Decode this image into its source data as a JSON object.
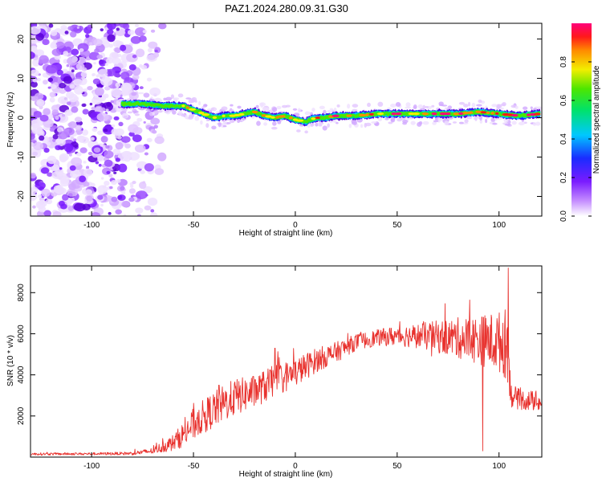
{
  "title": "PAZ1.2024.280.09.31.G30",
  "chart_data": [
    {
      "type": "heatmap",
      "title": "",
      "xlabel": "Height of straight line (km)",
      "ylabel": "Frequency (Hz)",
      "xlim": [
        -130,
        121
      ],
      "ylim": [
        -25,
        24
      ],
      "xticks": [
        -100,
        -50,
        0,
        50,
        100
      ],
      "yticks": [
        -20,
        -10,
        0,
        10,
        20
      ],
      "colorbar": {
        "label": "Normalized spectral amplitude",
        "range": [
          0,
          1
        ],
        "ticks": [
          "0.0",
          "0.2",
          "0.4",
          "0.6",
          "0.8"
        ],
        "colormap": "rainbow (white-violet-blue-cyan-green-yellow-red-magenta)"
      },
      "ridge": {
        "x": [
          -85,
          -75,
          -65,
          -55,
          -50,
          -45,
          -40,
          -35,
          -30,
          -25,
          -20,
          -15,
          -10,
          -5,
          0,
          5,
          10,
          15,
          20,
          30,
          40,
          50,
          60,
          70,
          80,
          90,
          100,
          110,
          120
        ],
        "freq": [
          3.5,
          3.5,
          3.0,
          3.0,
          2.0,
          1.0,
          0.0,
          0.5,
          0.5,
          1.0,
          1.5,
          0.5,
          0.0,
          0.5,
          -0.5,
          -1.0,
          0.0,
          0.0,
          0.5,
          0.5,
          1.0,
          1.0,
          1.0,
          1.0,
          1.0,
          1.5,
          1.0,
          0.5,
          1.0
        ]
      },
      "noise_region_x": [
        -130,
        -65
      ]
    },
    {
      "type": "line",
      "title": "",
      "xlabel": "Height of straight line (km)",
      "ylabel": "SNR (10 * v/v)",
      "xlim": [
        -130,
        121
      ],
      "ylim": [
        0,
        9300
      ],
      "xticks": [
        -100,
        -50,
        0,
        50,
        100
      ],
      "yticks": [
        2000,
        4000,
        6000,
        8000
      ],
      "color": "#e8322e",
      "envelope": {
        "x": [
          -130,
          -100,
          -80,
          -70,
          -60,
          -55,
          -50,
          -45,
          -40,
          -35,
          -30,
          -20,
          -10,
          0,
          10,
          20,
          30,
          40,
          50,
          60,
          70,
          80,
          90,
          100,
          104,
          106,
          110,
          120
        ],
        "mean": [
          150,
          160,
          180,
          300,
          700,
          1100,
          1600,
          2000,
          2300,
          2600,
          2900,
          3200,
          3700,
          4100,
          4700,
          5100,
          5600,
          5800,
          5900,
          5900,
          5850,
          5800,
          5700,
          5600,
          5500,
          3000,
          2800,
          2700
        ],
        "spread": [
          60,
          60,
          80,
          150,
          400,
          600,
          800,
          800,
          900,
          900,
          900,
          800,
          800,
          700,
          600,
          500,
          400,
          400,
          500,
          600,
          800,
          1000,
          1200,
          1500,
          1800,
          600,
          500,
          500
        ]
      },
      "notable_points": [
        {
          "x": -37.5,
          "y": 3500
        },
        {
          "x": -10,
          "y": 5300
        },
        {
          "x": 92,
          "y": 300
        },
        {
          "x": 104.5,
          "y": 9200
        }
      ]
    }
  ]
}
